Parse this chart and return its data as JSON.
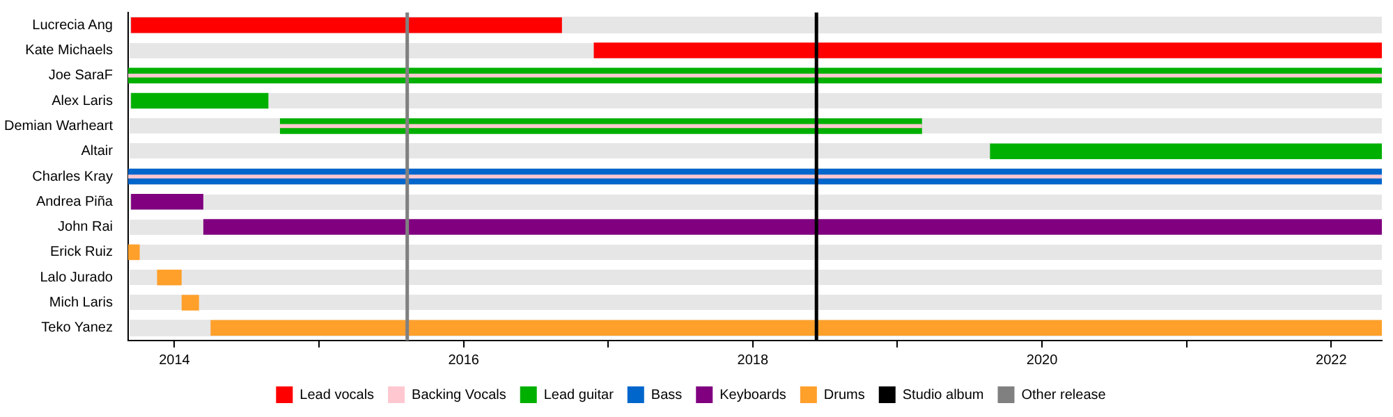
{
  "chart_data": {
    "type": "bar",
    "orientation": "horizontal",
    "categories": [
      "Lucrecia Ang",
      "Kate Michaels",
      "Joe SaraF",
      "Alex Laris",
      "Demian Warheart",
      "Altair",
      "Charles Kray",
      "Andrea Piña",
      "John Rai",
      "Erick Ruiz",
      "Lalo Jurado",
      "Mich Laris",
      "Teko Yanez"
    ],
    "series": [
      {
        "name": "Lead vocals",
        "color": "#ff0000",
        "base": [
          2013.7,
          2016.9,
          null,
          null,
          null,
          null,
          null,
          null,
          null,
          null,
          null,
          null,
          null
        ],
        "values": [
          2.98,
          5.45,
          null,
          null,
          null,
          null,
          null,
          null,
          null,
          null,
          null,
          null,
          null
        ]
      },
      {
        "name": "Backing Vocals",
        "color": "#ffc8d0",
        "base": [
          null,
          null,
          2013.68,
          null,
          2014.73,
          null,
          2013.68,
          null,
          null,
          null,
          null,
          null,
          null
        ],
        "values": [
          null,
          null,
          8.67,
          null,
          4.44,
          null,
          8.67,
          null,
          null,
          null,
          null,
          null,
          null
        ]
      },
      {
        "name": "Lead guitar",
        "color": "#00b000",
        "base": [
          null,
          null,
          2013.68,
          2013.7,
          2014.73,
          2019.64,
          null,
          null,
          null,
          null,
          null,
          null,
          null
        ],
        "values": [
          null,
          null,
          8.67,
          0.95,
          4.44,
          2.71,
          null,
          null,
          null,
          null,
          null,
          null,
          null
        ]
      },
      {
        "name": "Bass",
        "color": "#0066cc",
        "base": [
          null,
          null,
          null,
          null,
          null,
          null,
          2013.68,
          null,
          null,
          null,
          null,
          null,
          null
        ],
        "values": [
          null,
          null,
          null,
          null,
          null,
          null,
          8.67,
          null,
          null,
          null,
          null,
          null,
          null
        ]
      },
      {
        "name": "Keyboards",
        "color": "#800080",
        "base": [
          null,
          null,
          null,
          null,
          null,
          null,
          null,
          2013.7,
          2014.2,
          null,
          null,
          null,
          null
        ],
        "values": [
          null,
          null,
          null,
          null,
          null,
          null,
          null,
          0.5,
          8.15,
          null,
          null,
          null,
          null
        ]
      },
      {
        "name": "Drums",
        "color": "#ffa02b",
        "base": [
          null,
          null,
          null,
          null,
          null,
          null,
          null,
          null,
          null,
          2013.68,
          2013.88,
          2014.05,
          2014.25
        ],
        "values": [
          null,
          null,
          null,
          null,
          null,
          null,
          null,
          null,
          null,
          0.08,
          0.17,
          0.12,
          8.1
        ]
      }
    ],
    "xlim": [
      2013.68,
      2022.35
    ],
    "xticks": [
      2014,
      {
        "value": 2015,
        "label": null
      },
      2016,
      {
        "value": 2017,
        "label": null
      },
      2018,
      {
        "value": 2019,
        "label": null
      },
      2020,
      {
        "value": 2021,
        "label": null
      },
      2022
    ],
    "ref_lines": [
      {
        "axis": "x",
        "value": 2018.44,
        "label": "Studio album",
        "color": "#000000"
      },
      {
        "axis": "x",
        "value": 2015.61,
        "label": "Other release",
        "color": "#808080"
      }
    ],
    "legend": "bottom"
  }
}
